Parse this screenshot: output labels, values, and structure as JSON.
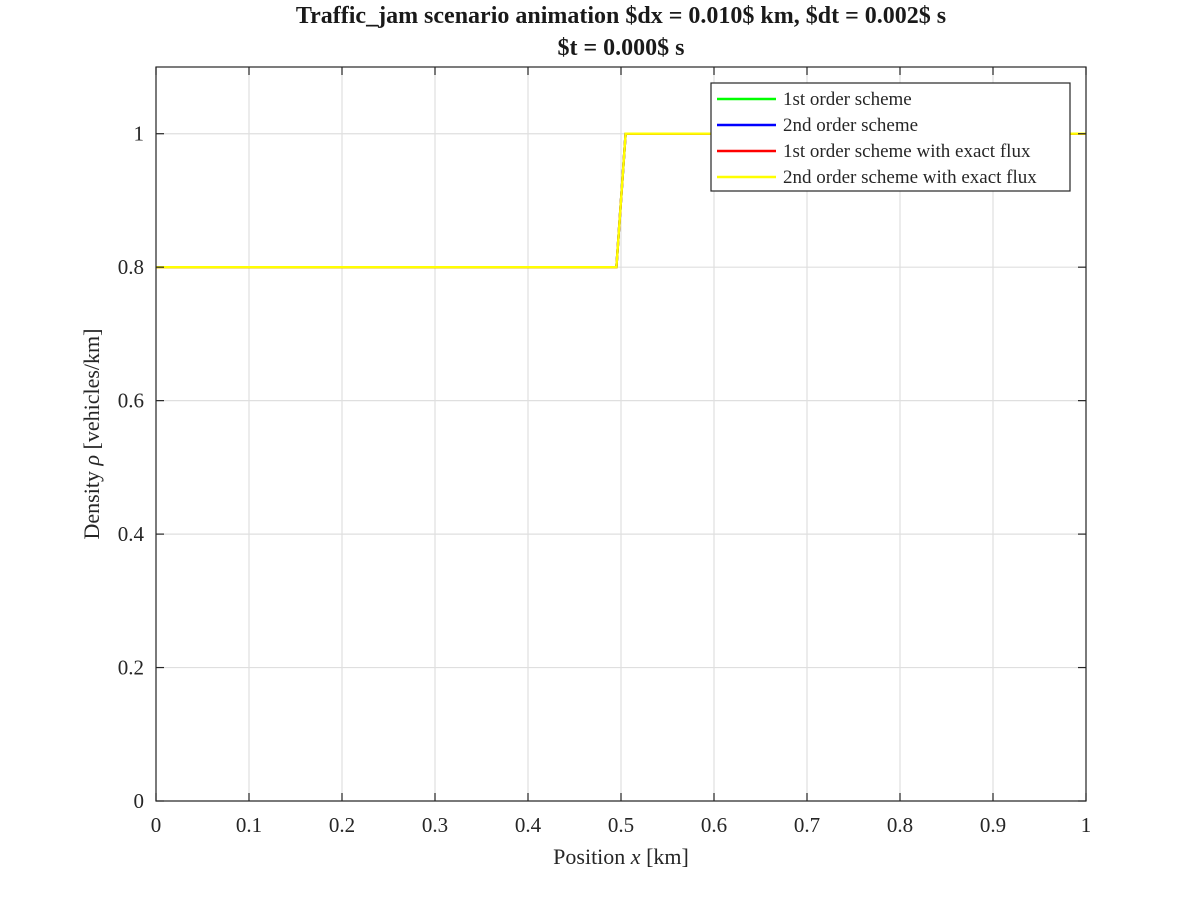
{
  "chart_data": {
    "type": "line",
    "title": "Traffic_jam scenario animation $dx = 0.010$ km, $dt = 0.002$ s",
    "subtitle": "$t = 0.000$ s",
    "xlabel_prefix": "Position ",
    "xlabel_var": "x",
    "xlabel_suffix": " [km]",
    "ylabel_prefix": "Density ",
    "ylabel_var": "ρ",
    "ylabel_suffix": " [vehicles/km]",
    "xlim": [
      0,
      1
    ],
    "ylim": [
      0,
      1.1
    ],
    "xticks": [
      0,
      0.1,
      0.2,
      0.3,
      0.4,
      0.5,
      0.6,
      0.7,
      0.8,
      0.9,
      1
    ],
    "xtick_labels": [
      "0",
      "0.1",
      "0.2",
      "0.3",
      "0.4",
      "0.5",
      "0.6",
      "0.7",
      "0.8",
      "0.9",
      "1"
    ],
    "yticks": [
      0,
      0.2,
      0.4,
      0.6,
      0.8,
      1
    ],
    "ytick_labels": [
      "0",
      "0.2",
      "0.4",
      "0.6",
      "0.8",
      "1"
    ],
    "grid": true,
    "legend_position": "top-right",
    "series": [
      {
        "name": "1st order scheme",
        "color": "#00ff00",
        "x": [
          0,
          0.495,
          0.505,
          1
        ],
        "y": [
          0.8,
          0.8,
          1.0,
          1.0
        ]
      },
      {
        "name": "2nd order scheme",
        "color": "#0000ff",
        "x": [
          0,
          0.495,
          0.505,
          1
        ],
        "y": [
          0.8,
          0.8,
          1.0,
          1.0
        ]
      },
      {
        "name": "1st order scheme with exact flux",
        "color": "#ff0000",
        "x": [
          0,
          0.495,
          0.505,
          1
        ],
        "y": [
          0.8,
          0.8,
          1.0,
          1.0
        ]
      },
      {
        "name": "2nd order scheme with exact flux",
        "color": "#ffff00",
        "x": [
          0,
          0.495,
          0.505,
          1
        ],
        "y": [
          0.8,
          0.8,
          1.0,
          1.0
        ]
      }
    ]
  }
}
